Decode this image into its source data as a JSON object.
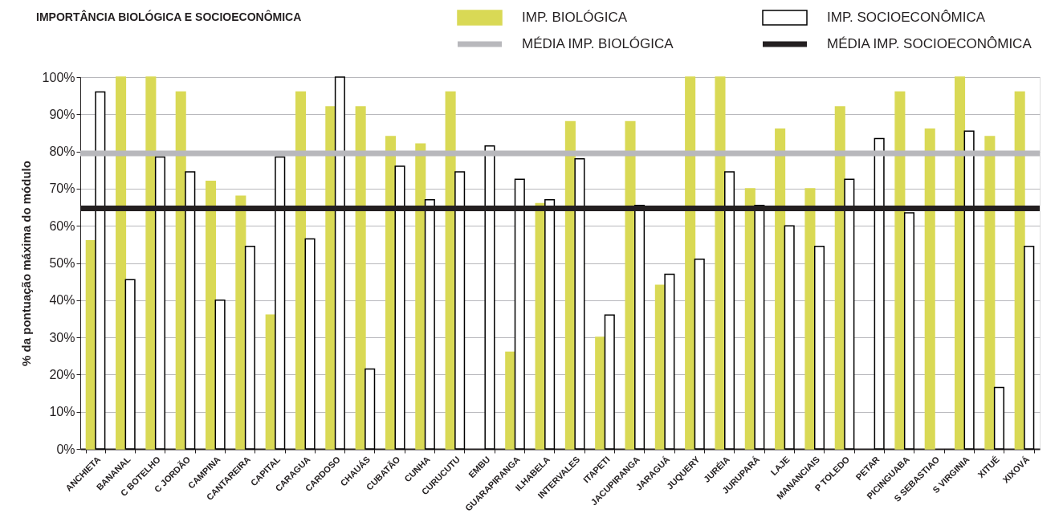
{
  "chart_data": {
    "type": "bar",
    "title": "IMPORTÂNCIA BIOLÓGICA E SOCIOECONÔMICA",
    "ylabel": "% da pontuação máxima do módulo",
    "categories": [
      "ANCHIETA",
      "BANANAL",
      "C BOTELHO",
      "C JORDÃO",
      "CAMPINA",
      "CANTAREIRA",
      "CAPITAL",
      "CARAGUA",
      "CARDOSO",
      "CHAUÁS",
      "CUBATÃO",
      "CUNHA",
      "CURUCUTU",
      "EMBU",
      "GUARAPIRANGA",
      "ILHABELA",
      "INTERVALES",
      "ITAPETI",
      "JACUPIRANGA",
      "JARAGUÁ",
      "JUQUERY",
      "JURÉIA",
      "JURUPARÁ",
      "LAJE",
      "MANANCIAIS",
      "P TOLEDO",
      "PETAR",
      "PICINGUABA",
      "S SEBASTIAO",
      "S VIRGINIA",
      "XITUÉ",
      "XIXOVÁ"
    ],
    "series": [
      {
        "name": "IMP. BIOLÓGICA",
        "color": "#d9d955",
        "values": [
          56,
          100,
          100,
          96,
          72,
          68,
          36,
          96,
          92,
          92,
          84,
          82,
          96,
          null,
          26,
          66,
          88,
          30,
          88,
          44,
          100,
          100,
          70,
          86,
          70,
          92,
          null,
          96,
          86,
          100,
          84,
          96
        ]
      },
      {
        "name": "IMP. SOCIOECONÔMICA",
        "color": "#ffffff",
        "values": [
          96,
          45.5,
          78.5,
          74.5,
          40,
          54.5,
          78.5,
          56.5,
          100,
          21.5,
          76,
          67,
          74.5,
          81.5,
          72.5,
          67,
          78,
          36,
          65.5,
          47,
          51,
          74.5,
          65.5,
          60,
          54.5,
          72.5,
          83.5,
          63.5,
          null,
          85.5,
          16.5,
          54.5
        ]
      }
    ],
    "ref_lines": [
      {
        "axis": "y",
        "value": 79.5,
        "label": "MÉDIA IMP. BIOLÓGICA",
        "color": "#b8b8bc"
      },
      {
        "axis": "y",
        "value": 64.7,
        "label": "MÉDIA IMP. SOCIOECONÔMICA",
        "color": "#231f20"
      }
    ],
    "ylim": [
      0,
      100
    ],
    "yticks": [
      {
        "value": 0,
        "label": "0%"
      },
      {
        "value": 10,
        "label": "10%"
      },
      {
        "value": 20,
        "label": "20%"
      },
      {
        "value": 30,
        "label": "30%"
      },
      {
        "value": 40,
        "label": "40%"
      },
      {
        "value": 50,
        "label": "50%"
      },
      {
        "value": 60,
        "label": "60%"
      },
      {
        "value": 70,
        "label": "70%"
      },
      {
        "value": 80,
        "label": "80%"
      },
      {
        "value": 90,
        "label": "90%"
      },
      {
        "value": 100,
        "label": "100%"
      }
    ],
    "grid": "y",
    "legend": "top"
  }
}
